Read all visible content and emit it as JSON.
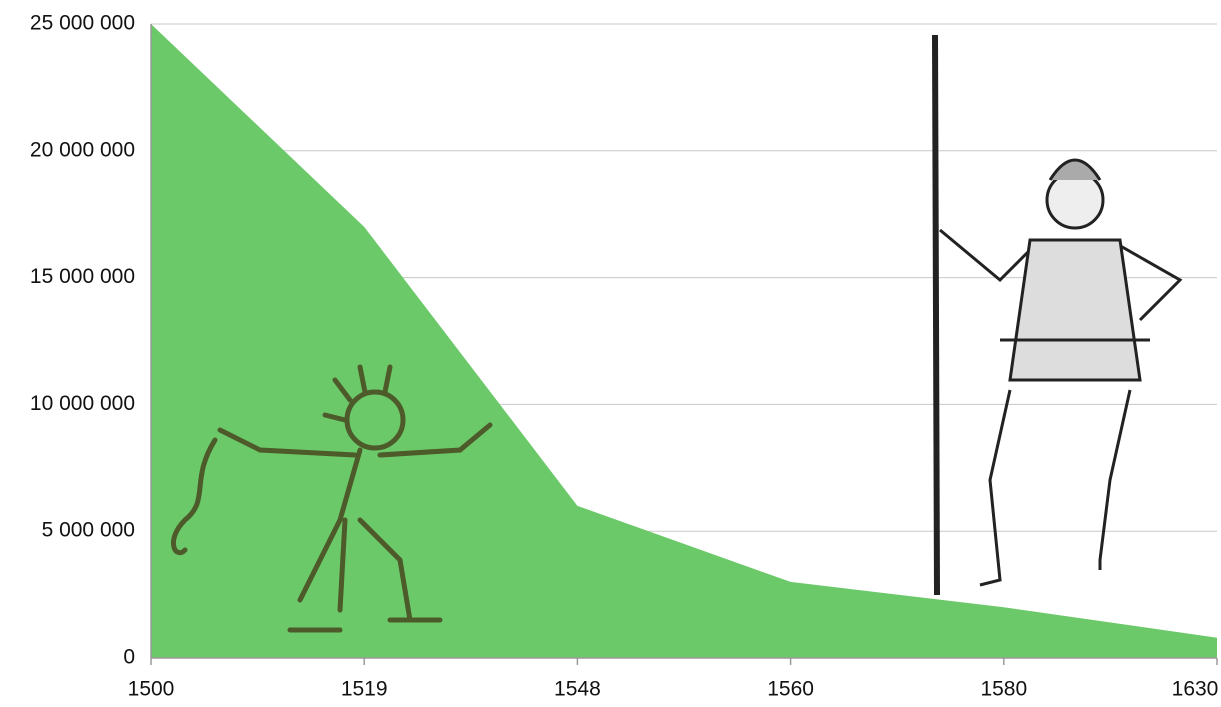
{
  "chart_data": {
    "type": "area",
    "categories": [
      "1500",
      "1519",
      "1548",
      "1560",
      "1580",
      "1630"
    ],
    "values": [
      25000000,
      17000000,
      6000000,
      3000000,
      2000000,
      800000
    ],
    "color": "#6cc96a",
    "ylim": [
      0,
      25000000
    ],
    "yticks": [
      0,
      {
        "value": 5000000,
        "label": "5 000 000"
      },
      {
        "value": 10000000,
        "label": "10 000 000"
      },
      {
        "value": 15000000,
        "label": "15 000 000"
      },
      {
        "value": 20000000,
        "label": "20 000 000"
      },
      {
        "value": 25000000,
        "label": "25 000 000"
      }
    ],
    "grid": true
  }
}
